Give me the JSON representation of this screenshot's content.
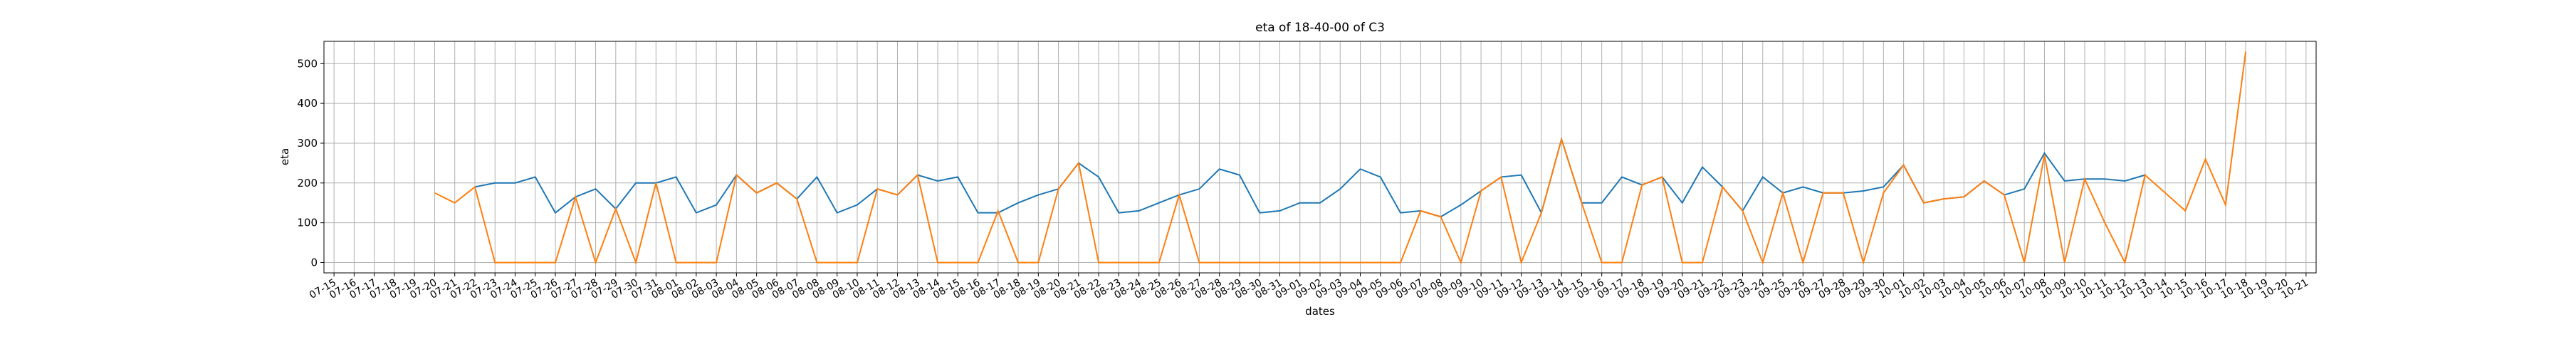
{
  "chart_data": {
    "type": "line",
    "title": "eta of 18-40-00 of C3",
    "x_label": "dates",
    "y_label": "eta",
    "categories": [
      "07-15",
      "07-16",
      "07-17",
      "07-18",
      "07-19",
      "07-20",
      "07-21",
      "07-22",
      "07-23",
      "07-24",
      "07-25",
      "07-26",
      "07-27",
      "07-28",
      "07-29",
      "07-30",
      "07-31",
      "08-01",
      "08-02",
      "08-03",
      "08-04",
      "08-05",
      "08-06",
      "08-07",
      "08-08",
      "08-09",
      "08-10",
      "08-11",
      "08-12",
      "08-13",
      "08-14",
      "08-15",
      "08-16",
      "08-17",
      "08-18",
      "08-19",
      "08-20",
      "08-21",
      "08-22",
      "08-23",
      "08-24",
      "08-25",
      "08-26",
      "08-27",
      "08-28",
      "08-29",
      "08-30",
      "08-31",
      "09-01",
      "09-02",
      "09-03",
      "09-04",
      "09-05",
      "09-06",
      "09-07",
      "09-08",
      "09-09",
      "09-10",
      "09-11",
      "09-12",
      "09-13",
      "09-14",
      "09-15",
      "09-16",
      "09-17",
      "09-18",
      "09-19",
      "09-20",
      "09-21",
      "09-22",
      "09-23",
      "09-24",
      "09-25",
      "09-26",
      "09-27",
      "09-28",
      "09-29",
      "09-30",
      "10-01",
      "10-02",
      "10-03",
      "10-04",
      "10-05",
      "10-06",
      "10-07",
      "10-08",
      "10-09",
      "10-10",
      "10-11",
      "10-12",
      "10-13",
      "10-14",
      "10-15",
      "10-16",
      "10-17",
      "10-18",
      "10-19",
      "10-20",
      "10-21"
    ],
    "series": [
      {
        "color": "#1f77b4",
        "values": [
          null,
          null,
          null,
          null,
          null,
          null,
          null,
          190,
          200,
          200,
          215,
          125,
          165,
          185,
          135,
          200,
          200,
          215,
          125,
          145,
          220,
          175,
          200,
          160,
          215,
          125,
          145,
          185,
          170,
          220,
          205,
          215,
          125,
          125,
          150,
          170,
          185,
          250,
          215,
          125,
          130,
          150,
          170,
          185,
          235,
          220,
          125,
          130,
          150,
          150,
          185,
          235,
          215,
          125,
          130,
          115,
          145,
          180,
          215,
          220,
          125,
          310,
          150,
          150,
          215,
          195,
          215,
          150,
          240,
          190,
          130,
          215,
          175,
          190,
          175,
          175,
          180,
          190,
          245,
          150,
          160,
          165,
          205,
          170,
          185,
          275,
          205,
          210,
          210,
          205,
          220,
          null,
          null,
          null,
          null,
          null,
          null,
          null,
          null
        ]
      },
      {
        "color": "#ff7f0e",
        "values": [
          null,
          null,
          null,
          null,
          null,
          175,
          150,
          190,
          0,
          0,
          0,
          0,
          165,
          0,
          135,
          0,
          200,
          0,
          0,
          0,
          220,
          175,
          200,
          160,
          0,
          0,
          0,
          185,
          170,
          220,
          0,
          0,
          0,
          130,
          0,
          0,
          185,
          250,
          0,
          0,
          0,
          0,
          170,
          0,
          0,
          0,
          0,
          0,
          0,
          0,
          0,
          0,
          0,
          0,
          130,
          115,
          0,
          180,
          215,
          0,
          125,
          310,
          150,
          0,
          0,
          195,
          215,
          0,
          0,
          190,
          130,
          0,
          175,
          0,
          175,
          175,
          0,
          175,
          245,
          150,
          160,
          165,
          205,
          170,
          0,
          270,
          0,
          210,
          100,
          0,
          220,
          175,
          130,
          260,
          145,
          530,
          null,
          null,
          null
        ]
      }
    ],
    "ylim": [
      -26,
      556
    ],
    "yticks": [
      0,
      100,
      200,
      300,
      400,
      500
    ],
    "grid": true
  }
}
